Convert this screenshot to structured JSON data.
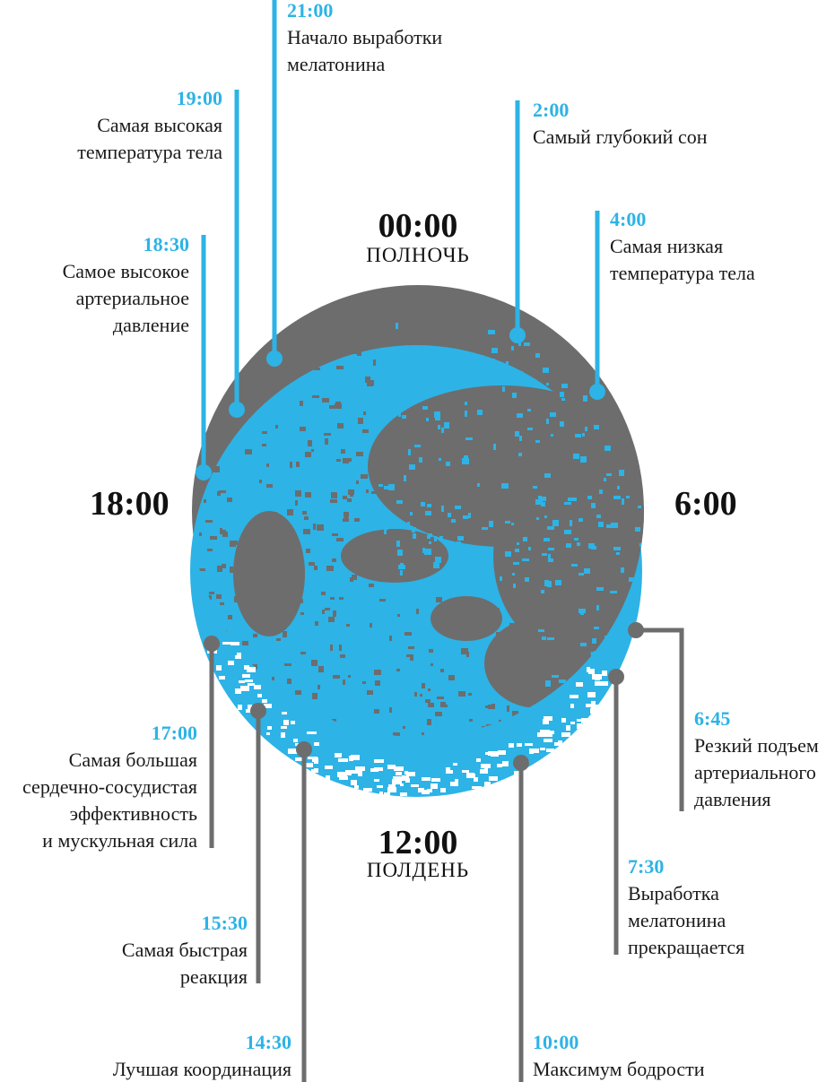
{
  "colors": {
    "blue": "#2db3e6",
    "grey": "#6d6d6d",
    "text": "#1a1a1a"
  },
  "clock": {
    "top": {
      "time": "00:00",
      "label": "ПОЛНОЧЬ"
    },
    "bottom": {
      "time": "12:00",
      "label": "ПОЛДЕНЬ"
    },
    "left": {
      "time": "18:00"
    },
    "right": {
      "time": "6:00"
    }
  },
  "events": [
    {
      "time": "21:00",
      "lines": [
        "Начало выработки",
        "мелатонина"
      ],
      "color": "blue"
    },
    {
      "time": "19:00",
      "lines": [
        "Самая высокая",
        "температура тела"
      ],
      "color": "blue"
    },
    {
      "time": "18:30",
      "lines": [
        "Самое высокое",
        "артериальное",
        "давление"
      ],
      "color": "blue"
    },
    {
      "time": "2:00",
      "lines": [
        "Самый глубокий сон"
      ],
      "color": "blue"
    },
    {
      "time": "4:00",
      "lines": [
        "Самая низкая",
        "температура тела"
      ],
      "color": "blue"
    },
    {
      "time": "17:00",
      "lines": [
        "Самая большая",
        "сердечно-сосудистая",
        "эффективность",
        "и мускульная сила"
      ],
      "color": "grey"
    },
    {
      "time": "15:30",
      "lines": [
        "Самая быстрая",
        "реакция"
      ],
      "color": "grey"
    },
    {
      "time": "14:30",
      "lines": [
        "Лучшая координация"
      ],
      "color": "grey"
    },
    {
      "time": "10:00",
      "lines": [
        "Максимум бодрости"
      ],
      "color": "grey"
    },
    {
      "time": "7:30",
      "lines": [
        "Выработка",
        "мелатонина",
        "прекращается"
      ],
      "color": "grey"
    },
    {
      "time": "6:45",
      "lines": [
        "Резкий подъем",
        "артериального",
        "давления"
      ],
      "color": "grey"
    }
  ]
}
